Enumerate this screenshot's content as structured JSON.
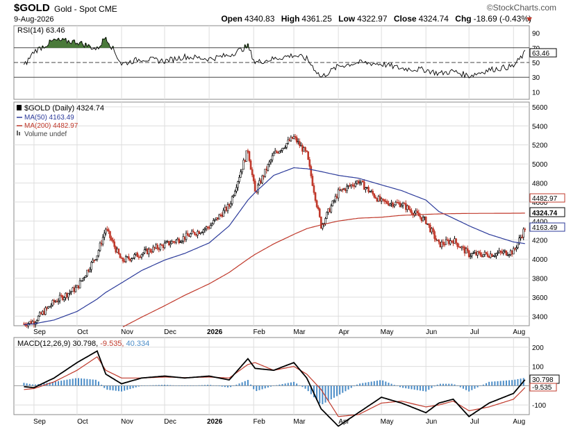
{
  "header": {
    "symbol": "$GOLD",
    "subtitle": "Gold - Spot CME",
    "date": "9-Aug-2026",
    "brand": "©StockCharts.com",
    "ohlc": {
      "open_label": "Open",
      "open": "4340.83",
      "high_label": "High",
      "high": "4361.25",
      "low_label": "Low",
      "low": "4322.97",
      "close_label": "Close",
      "close": "4324.74",
      "chg_label": "Chg",
      "chg": "-18.69 (-0.43%)"
    }
  },
  "colors": {
    "price_up": "#000000",
    "price_down": "#c0392b",
    "ma50": "#2b3a9a",
    "ma200": "#c0392b",
    "rsi_line": "#000000",
    "rsi_fill": "#4a7a3a",
    "macd_line": "#000000",
    "signal_line": "#c0392b",
    "histogram": "#4a8cc7",
    "grid": "#dddddd"
  },
  "rsi": {
    "label": "RSI(14) 63.46",
    "last_value": "63.46",
    "y_ticks": [
      "90",
      "70",
      "50",
      "30",
      "10"
    ],
    "levels": [
      70,
      50,
      30
    ]
  },
  "price": {
    "legend": [
      {
        "label": "$GOLD (Daily) 4324.74",
        "icon": "candlestick-icon"
      },
      {
        "label": "MA(50) 4163.49",
        "color": "#2b3a9a"
      },
      {
        "label": "MA(200) 4482.97",
        "color": "#c0392b"
      },
      {
        "label": "Volume undef",
        "icon": "volume-icon"
      }
    ],
    "y_ticks": [
      "5600",
      "5400",
      "5200",
      "5000",
      "4800",
      "4600",
      "4400",
      "4200",
      "4000",
      "3800",
      "3600",
      "3400"
    ],
    "tags": {
      "ma200": "4482.97",
      "close": "4324.74",
      "ma50": "4163.49"
    }
  },
  "macd": {
    "label_main": "MACD(12,26,9) 30.798, ",
    "label_signal": "-9.535, ",
    "label_hist": "40.334",
    "y_ticks": [
      "200",
      "100",
      "-100"
    ],
    "tags": {
      "macd": "30.798",
      "signal": "-9.535"
    }
  },
  "x_labels": [
    "Sep",
    "Oct",
    "Nov",
    "Dec",
    "2026",
    "Feb",
    "Mar",
    "Apr",
    "May",
    "Jun",
    "Jul",
    "Aug"
  ],
  "chart_data": {
    "type": "line",
    "title": "$GOLD Gold - Spot CME",
    "date_range": [
      "2025-08",
      "2026-08-09"
    ],
    "last_bar": {
      "date": "2026-08-09",
      "open": 4340.83,
      "high": 4361.25,
      "low": 4322.97,
      "close": 4324.74,
      "change": -18.69,
      "change_pct": -0.43
    },
    "x": [
      "2025-08-25",
      "2025-09-01",
      "2025-09-15",
      "2025-10-01",
      "2025-10-15",
      "2025-10-21",
      "2025-11-01",
      "2025-11-15",
      "2025-12-01",
      "2025-12-15",
      "2026-01-01",
      "2026-01-15",
      "2026-01-28",
      "2026-02-02",
      "2026-02-15",
      "2026-03-01",
      "2026-03-10",
      "2026-03-20",
      "2026-04-01",
      "2026-04-15",
      "2026-05-01",
      "2026-05-15",
      "2026-06-01",
      "2026-06-10",
      "2026-06-20",
      "2026-07-01",
      "2026-07-15",
      "2026-08-01",
      "2026-08-09"
    ],
    "series": [
      {
        "name": "$GOLD (Daily)",
        "values": [
          3320,
          3345,
          3550,
          3700,
          4050,
          4320,
          3980,
          4060,
          4150,
          4230,
          4340,
          4560,
          5150,
          4700,
          5100,
          5280,
          5100,
          4350,
          4700,
          4820,
          4600,
          4580,
          4400,
          4150,
          4200,
          4050,
          4050,
          4080,
          4325
        ]
      },
      {
        "name": "MA(50)",
        "values": [
          3310,
          3320,
          3360,
          3450,
          3580,
          3650,
          3750,
          3880,
          3990,
          4060,
          4170,
          4350,
          4620,
          4700,
          4880,
          4960,
          4950,
          4920,
          4880,
          4850,
          4780,
          4720,
          4620,
          4500,
          4430,
          4350,
          4260,
          4180,
          4163
        ]
      },
      {
        "name": "MA(200)",
        "values": [
          null,
          null,
          null,
          null,
          null,
          null,
          3280,
          3390,
          3510,
          3620,
          3740,
          3860,
          4000,
          4050,
          4160,
          4260,
          4320,
          4360,
          4400,
          4430,
          4440,
          4460,
          4470,
          4475,
          4478,
          4480,
          4481,
          4482,
          4483
        ]
      },
      {
        "name": "RSI(14)",
        "values": [
          45,
          65,
          80,
          78,
          68,
          85,
          48,
          55,
          52,
          58,
          55,
          60,
          72,
          50,
          55,
          60,
          55,
          30,
          45,
          50,
          48,
          42,
          40,
          35,
          38,
          32,
          40,
          45,
          63
        ]
      },
      {
        "name": "MACD",
        "values": [
          -5,
          -10,
          40,
          120,
          180,
          60,
          10,
          40,
          50,
          40,
          50,
          30,
          140,
          90,
          80,
          120,
          40,
          -120,
          -210,
          -140,
          -60,
          -90,
          -140,
          -90,
          -70,
          -160,
          -90,
          -40,
          31
        ]
      },
      {
        "name": "Signal",
        "values": [
          -20,
          -15,
          20,
          80,
          150,
          80,
          40,
          40,
          45,
          42,
          45,
          40,
          110,
          120,
          80,
          100,
          60,
          -20,
          -160,
          -150,
          -90,
          -80,
          -110,
          -100,
          -80,
          -130,
          -110,
          -70,
          -10
        ]
      }
    ],
    "ylim_price": [
      3300,
      5650
    ],
    "ylim_rsi": [
      0,
      100
    ],
    "ylim_macd": [
      -150,
      250
    ]
  }
}
